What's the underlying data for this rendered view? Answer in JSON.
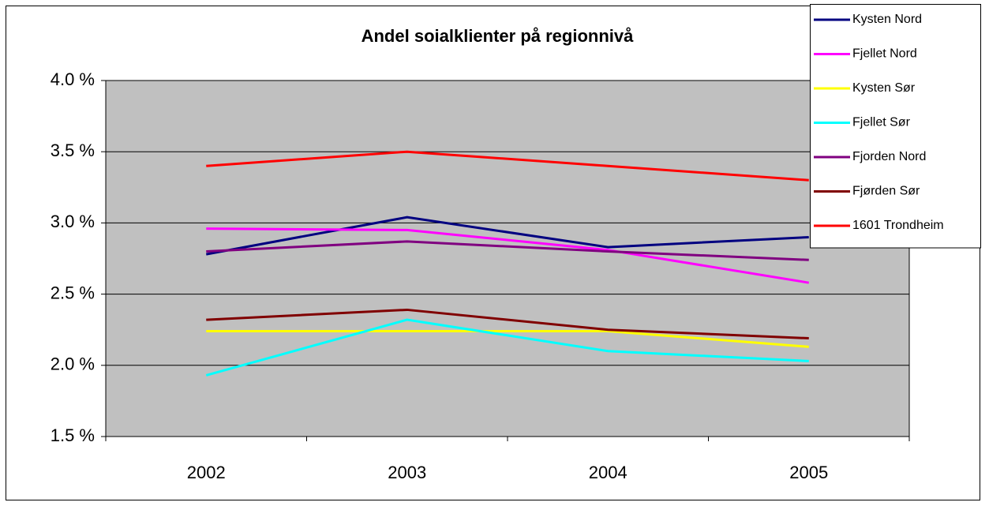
{
  "chart_data": {
    "type": "line",
    "title": "Andel soialklienter på regionnivå",
    "categories": [
      "2002",
      "2003",
      "2004",
      "2005"
    ],
    "series": [
      {
        "name": "Kysten Nord",
        "color": "#000080",
        "values": [
          2.78,
          3.04,
          2.83,
          2.9
        ]
      },
      {
        "name": "Fjellet Nord",
        "color": "#ff00ff",
        "values": [
          2.96,
          2.95,
          2.81,
          2.58
        ]
      },
      {
        "name": "Kysten Sør",
        "color": "#ffff00",
        "values": [
          2.24,
          2.24,
          2.24,
          2.13
        ]
      },
      {
        "name": "Fjellet Sør",
        "color": "#00ffff",
        "values": [
          1.93,
          2.32,
          2.1,
          2.03
        ]
      },
      {
        "name": "Fjorden Nord",
        "color": "#800080",
        "values": [
          2.8,
          2.87,
          2.8,
          2.74
        ]
      },
      {
        "name": "Fjørden Sør",
        "color": "#800000",
        "values": [
          2.32,
          2.39,
          2.25,
          2.19
        ]
      },
      {
        "name": "1601 Trondheim",
        "color": "#ff0000",
        "values": [
          3.4,
          3.5,
          3.4,
          3.3
        ]
      }
    ],
    "ylim": [
      1.5,
      4.0
    ],
    "yticks": [
      {
        "value": 1.5,
        "label": "1.5 %"
      },
      {
        "value": 2.0,
        "label": "2.0 %"
      },
      {
        "value": 2.5,
        "label": "2.5 %"
      },
      {
        "value": 3.0,
        "label": "3.0 %"
      },
      {
        "value": 3.5,
        "label": "3.5 %"
      },
      {
        "value": 4.0,
        "label": "4.0 %"
      }
    ],
    "grid": true,
    "plot_background": "#c0c0c0",
    "legend": "top-right"
  }
}
